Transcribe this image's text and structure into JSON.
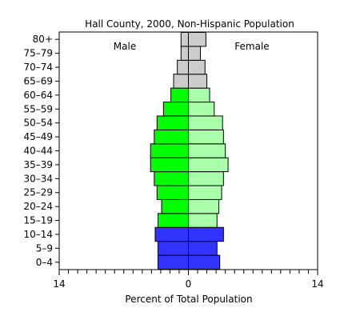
{
  "chart_data": {
    "type": "bar",
    "title": "Hall County, 2000, Non-Hispanic Population",
    "xlabel": "Percent of Total Population",
    "ylabel": "",
    "xlim": [
      -14,
      14
    ],
    "x_tick_labels": [
      "14",
      "0",
      "14"
    ],
    "side_labels": {
      "left": "Male",
      "right": "Female"
    },
    "categories": [
      "0-4",
      "5-9",
      "10-14",
      "15-19",
      "20-24",
      "25-29",
      "30-34",
      "35-39",
      "40-44",
      "45-49",
      "50-54",
      "55-59",
      "60-64",
      "65-69",
      "70-74",
      "75-79",
      "80+"
    ],
    "series": [
      {
        "name": "Male",
        "values": [
          3.3,
          3.3,
          3.6,
          3.3,
          2.9,
          3.4,
          3.7,
          4.1,
          4.1,
          3.7,
          3.4,
          2.7,
          1.9,
          1.6,
          1.2,
          0.8,
          0.8
        ]
      },
      {
        "name": "Female",
        "values": [
          3.4,
          3.1,
          3.8,
          3.1,
          3.3,
          3.6,
          3.8,
          4.3,
          4.0,
          3.8,
          3.7,
          2.8,
          2.3,
          2.0,
          1.8,
          1.3,
          1.9
        ]
      }
    ],
    "group_colors": {
      "children": {
        "male": "#3333ff",
        "female": "#3333ff"
      },
      "working_age": {
        "male": "#00ff00",
        "female": "#aaffaa"
      },
      "elderly": {
        "male": "#cccccc",
        "female": "#cccccc"
      }
    }
  }
}
